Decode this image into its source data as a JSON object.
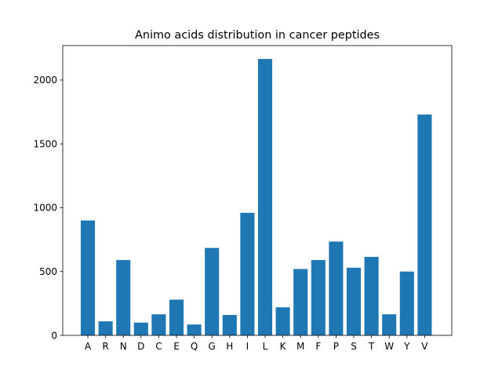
{
  "chart_data": {
    "type": "bar",
    "title": "Animo acids distribution in cancer peptides",
    "xlabel": "",
    "ylabel": "",
    "categories": [
      "A",
      "R",
      "N",
      "D",
      "C",
      "E",
      "Q",
      "G",
      "H",
      "I",
      "L",
      "K",
      "M",
      "F",
      "P",
      "S",
      "T",
      "W",
      "Y",
      "V"
    ],
    "values": [
      900,
      110,
      590,
      100,
      165,
      280,
      85,
      685,
      160,
      960,
      2165,
      220,
      520,
      590,
      735,
      530,
      615,
      165,
      500,
      1730
    ],
    "ylim": [
      0,
      2270
    ],
    "yticks": [
      0,
      500,
      1000,
      1500,
      2000
    ],
    "bar_color": "#1f77b4",
    "grid": false,
    "legend": "none"
  }
}
